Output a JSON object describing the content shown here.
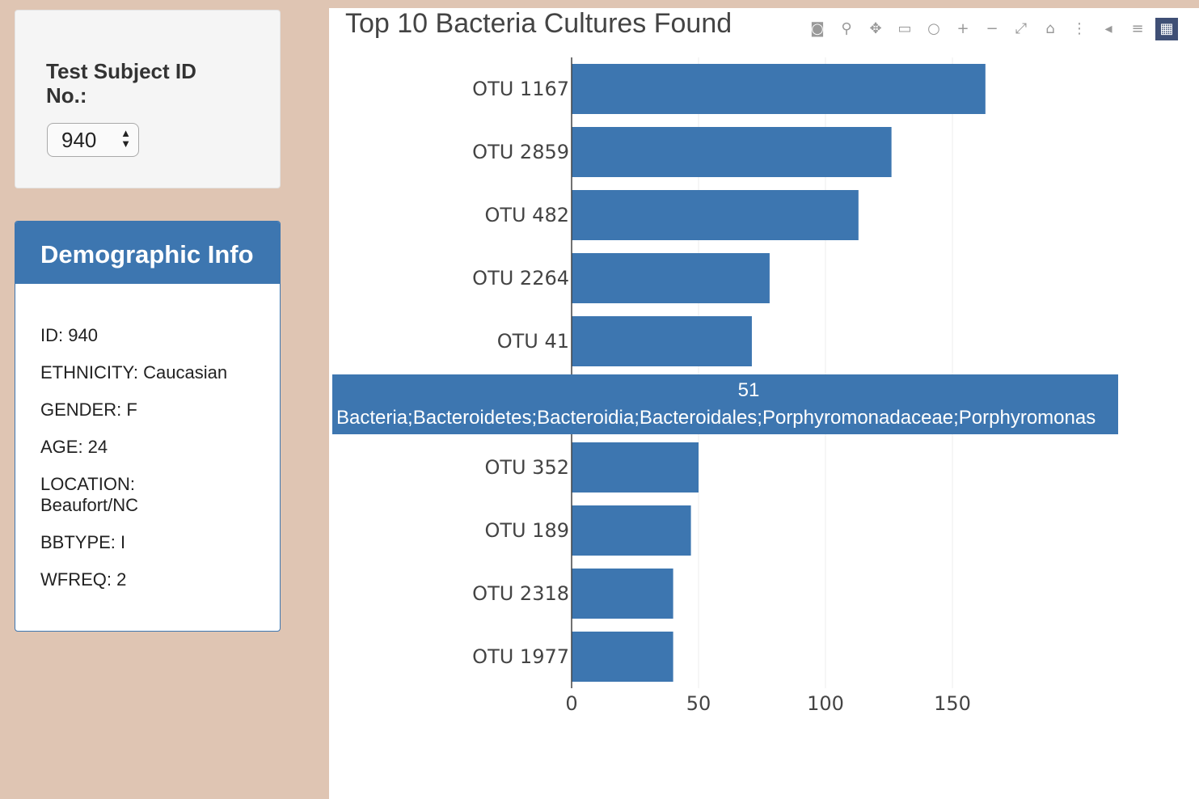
{
  "selector": {
    "label": "Test Subject ID No.:",
    "value": "940"
  },
  "demographics": {
    "title": "Demographic Info",
    "rows": [
      "ID: 940",
      "ETHNICITY: Caucasian",
      "GENDER: F",
      "AGE: 24",
      "LOCATION: Beaufort/NC",
      "BBTYPE: I",
      "WFREQ: 2"
    ]
  },
  "toolbar": [
    "camera-icon",
    "zoom-icon",
    "pan-icon",
    "box-select-icon",
    "lasso-select-icon",
    "zoom-in-icon",
    "zoom-out-icon",
    "autoscale-icon",
    "reset-axes-icon",
    "spike-lines-icon",
    "hover-closest-icon",
    "hover-compare-icon",
    "plotly-logo-icon"
  ],
  "chart_data": {
    "type": "bar",
    "orientation": "horizontal",
    "title": "Top 10 Bacteria Cultures Found",
    "categories": [
      "OTU 1167",
      "OTU 2859",
      "OTU 482",
      "OTU 2264",
      "OTU 41",
      "",
      "OTU 352",
      "OTU 189",
      "OTU 2318",
      "OTU 1977"
    ],
    "values": [
      163,
      126,
      113,
      78,
      71,
      51,
      50,
      47,
      40,
      40
    ],
    "xlim": [
      0,
      200
    ],
    "xticks": [
      0,
      50,
      100,
      150
    ],
    "grid": true,
    "color": "#3d76b0",
    "tooltip": {
      "value": "51",
      "text": "Bacteria;Bacteroidetes;Bacteroidia;Bacteroidales;Porphyromonadaceae;Porphyromonas"
    }
  }
}
